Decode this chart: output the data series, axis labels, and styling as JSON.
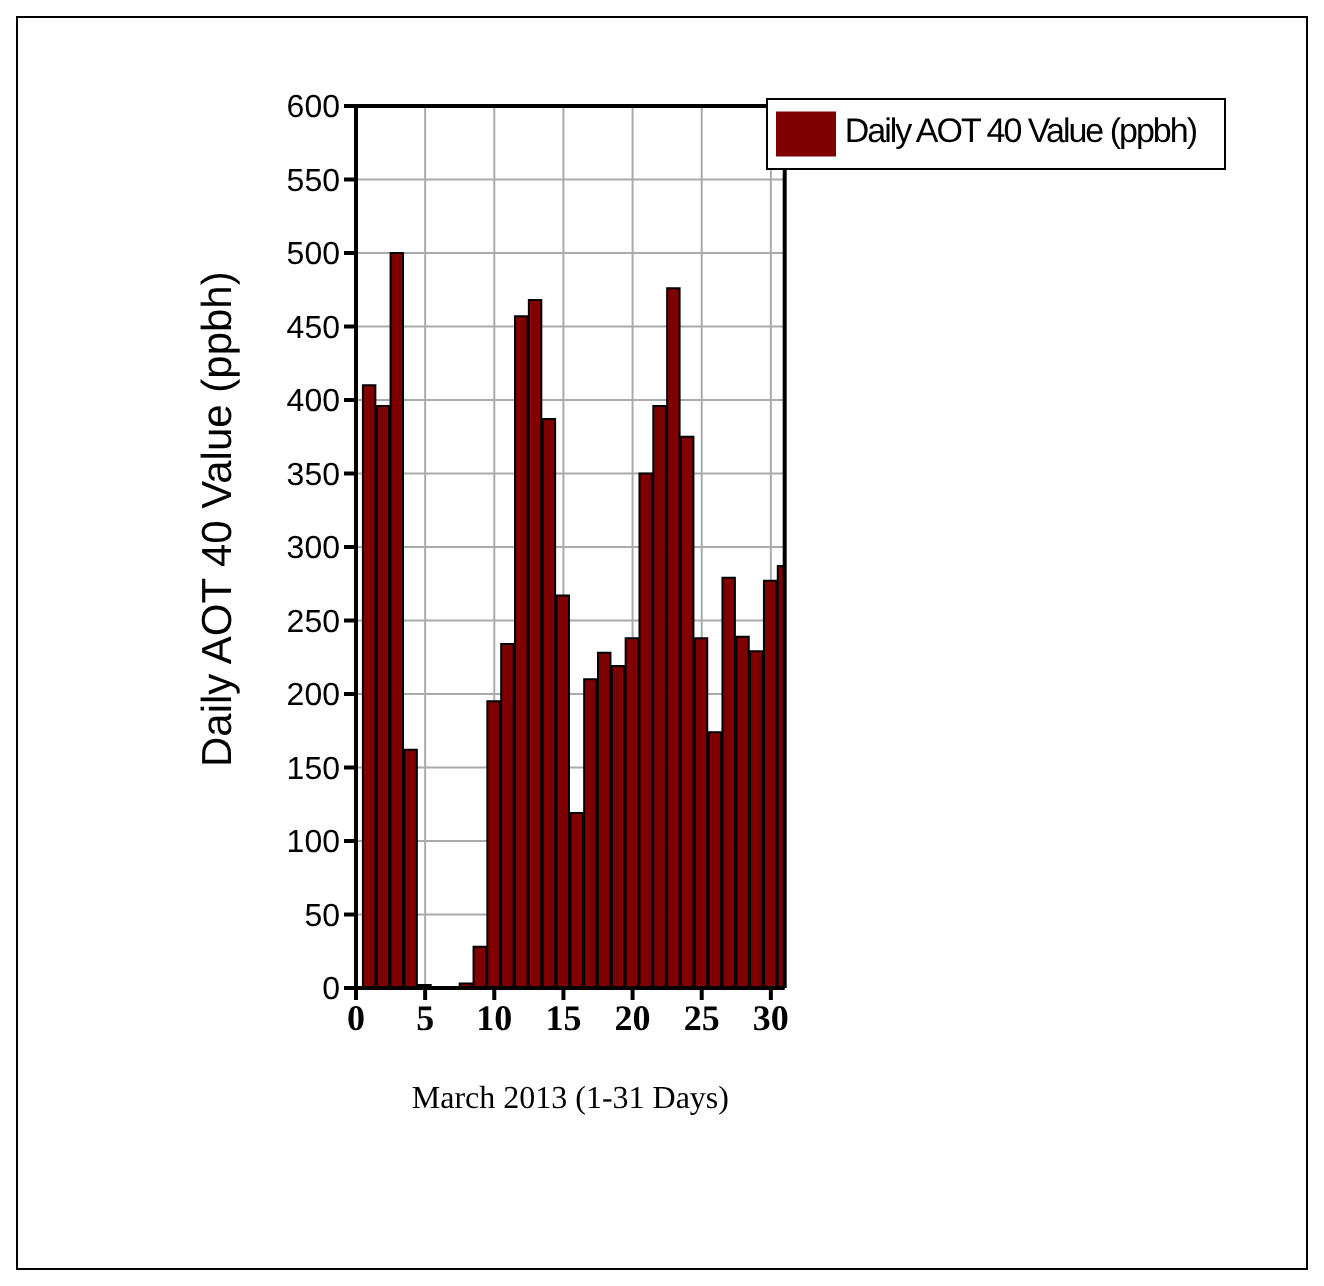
{
  "chart_data": {
    "type": "bar",
    "xlabel": "March 2013 (1-31 Days)",
    "ylabel": "Daily AOT 40 Value (ppbh)",
    "x": [
      1,
      2,
      3,
      4,
      5,
      6,
      7,
      8,
      9,
      10,
      11,
      12,
      13,
      14,
      15,
      16,
      17,
      18,
      19,
      20,
      21,
      22,
      23,
      24,
      25,
      26,
      27,
      28,
      29,
      30,
      31
    ],
    "series": [
      {
        "name": "Daily AOT 40 Value (ppbh)",
        "color": "#800000",
        "values": [
          410,
          396,
          500,
          162,
          2,
          0,
          0,
          3,
          28,
          195,
          234,
          457,
          468,
          387,
          267,
          119,
          210,
          228,
          219,
          238,
          350,
          396,
          476,
          375,
          238,
          174,
          279,
          239,
          229,
          277,
          287
        ]
      }
    ],
    "xlim": [
      0,
      31
    ],
    "xticks": [
      0,
      5,
      10,
      15,
      20,
      25,
      30
    ],
    "ylim": [
      0,
      600
    ],
    "yticks": [
      0,
      50,
      100,
      150,
      200,
      250,
      300,
      350,
      400,
      450,
      500,
      550,
      600
    ],
    "grid": true,
    "legend": "top right"
  }
}
